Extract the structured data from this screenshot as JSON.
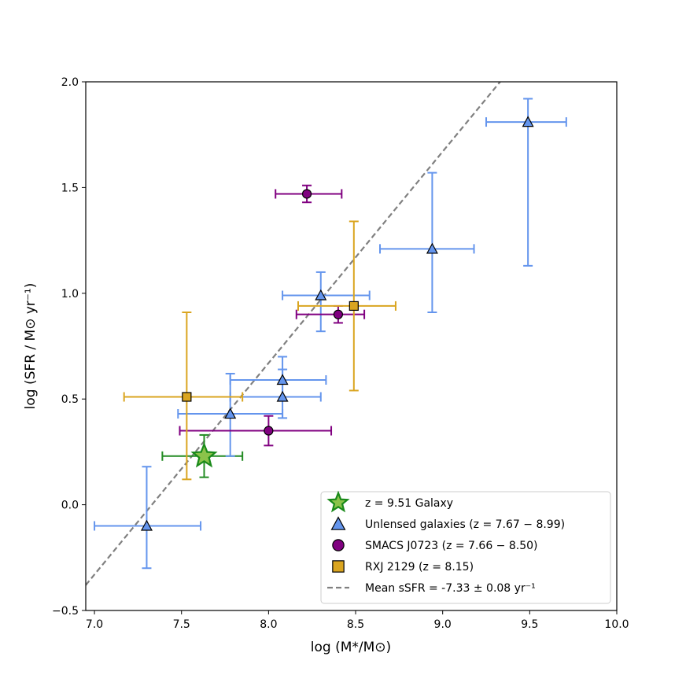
{
  "chart_data": {
    "type": "scatter",
    "title": "",
    "xlabel": "log (M*/M⊙)",
    "ylabel": "log (SFR / M⊙ yr⁻¹)",
    "xlim": [
      6.95,
      10.0
    ],
    "ylim": [
      -0.5,
      2.0
    ],
    "xticks": [
      7.0,
      7.5,
      8.0,
      8.5,
      9.0,
      9.5,
      10.0
    ],
    "xtick_labels": [
      "7.0",
      "7.5",
      "8.0",
      "8.5",
      "9.0",
      "9.5",
      "10.0"
    ],
    "yticks": [
      -0.5,
      0.0,
      0.5,
      1.0,
      1.5,
      2.0
    ],
    "ytick_labels": [
      "−0.5",
      "0.0",
      "0.5",
      "1.0",
      "1.5",
      "2.0"
    ],
    "legend_position": "lower-right",
    "series": [
      {
        "name": "z = 9.51 Galaxy",
        "marker": "star",
        "color": "#8bc34a",
        "edge_color": "#1a8a1a",
        "err_color": "#228b22",
        "points": [
          {
            "x": 7.63,
            "y": 0.23,
            "xerr": [
              0.24,
              0.22
            ],
            "yerr": [
              0.1,
              0.1
            ]
          }
        ]
      },
      {
        "name": "Unlensed galaxies (z = 7.67 − 8.99)",
        "marker": "triangle",
        "color": "#6495ed",
        "edge_color": "#000000",
        "err_color": "#6495ed",
        "points": [
          {
            "x": 7.3,
            "y": -0.1,
            "xerr": [
              0.3,
              0.31
            ],
            "yerr": [
              0.2,
              0.28
            ]
          },
          {
            "x": 7.78,
            "y": 0.43,
            "xerr": [
              0.3,
              0.3
            ],
            "yerr": [
              0.2,
              0.19
            ]
          },
          {
            "x": 8.08,
            "y": 0.59,
            "xerr": [
              0.3,
              0.25
            ],
            "yerr": [
              0.08,
              0.11
            ]
          },
          {
            "x": 8.08,
            "y": 0.51,
            "xerr": [
              0.3,
              0.22
            ],
            "yerr": [
              0.1,
              0.13
            ]
          },
          {
            "x": 8.3,
            "y": 0.99,
            "xerr": [
              0.22,
              0.28
            ],
            "yerr": [
              0.17,
              0.11
            ]
          },
          {
            "x": 8.94,
            "y": 1.21,
            "xerr": [
              0.3,
              0.24
            ],
            "yerr": [
              0.3,
              0.36
            ]
          },
          {
            "x": 9.49,
            "y": 1.81,
            "xerr": [
              0.24,
              0.22
            ],
            "yerr": [
              0.68,
              0.11
            ]
          }
        ]
      },
      {
        "name": "SMACS J0723 (z = 7.66 − 8.50)",
        "marker": "circle",
        "color": "#800080",
        "edge_color": "#000000",
        "err_color": "#800080",
        "points": [
          {
            "x": 8.22,
            "y": 1.47,
            "xerr": [
              0.18,
              0.2
            ],
            "yerr": [
              0.04,
              0.04
            ]
          },
          {
            "x": 8.4,
            "y": 0.9,
            "xerr": [
              0.24,
              0.15
            ],
            "yerr": [
              0.04,
              0.04
            ]
          },
          {
            "x": 8.0,
            "y": 0.35,
            "xerr": [
              0.51,
              0.36
            ],
            "yerr": [
              0.07,
              0.07
            ]
          }
        ]
      },
      {
        "name": "RXJ 2129 (z = 8.15)",
        "marker": "square",
        "color": "#daa520",
        "edge_color": "#000000",
        "err_color": "#daa520",
        "points": [
          {
            "x": 7.53,
            "y": 0.51,
            "xerr": [
              0.36,
              0.32
            ],
            "yerr": [
              0.39,
              0.4
            ]
          },
          {
            "x": 8.49,
            "y": 0.94,
            "xerr": [
              0.32,
              0.24
            ],
            "yerr": [
              0.4,
              0.4
            ]
          }
        ]
      }
    ],
    "fit_line": {
      "name": "Mean sSFR = -7.33 ± 0.08 yr⁻¹",
      "style": "dashed",
      "color": "#808080",
      "sSFR": -7.33,
      "x_range": [
        6.95,
        9.33
      ]
    },
    "legend": [
      {
        "marker": "star",
        "label_main": "z = 9.51 Galaxy"
      },
      {
        "marker": "triangle",
        "label_main": "Unlensed galaxies (z = 7.67 − 8.99)"
      },
      {
        "marker": "circle",
        "label_main": "SMACS J0723 (z = 7.66 − 8.50)"
      },
      {
        "marker": "square",
        "label_main": "RXJ 2129 (z = 8.15)"
      },
      {
        "marker": "dashed-line",
        "label_main": "Mean sSFR = -7.33 ± 0.08 yr⁻¹"
      }
    ]
  }
}
